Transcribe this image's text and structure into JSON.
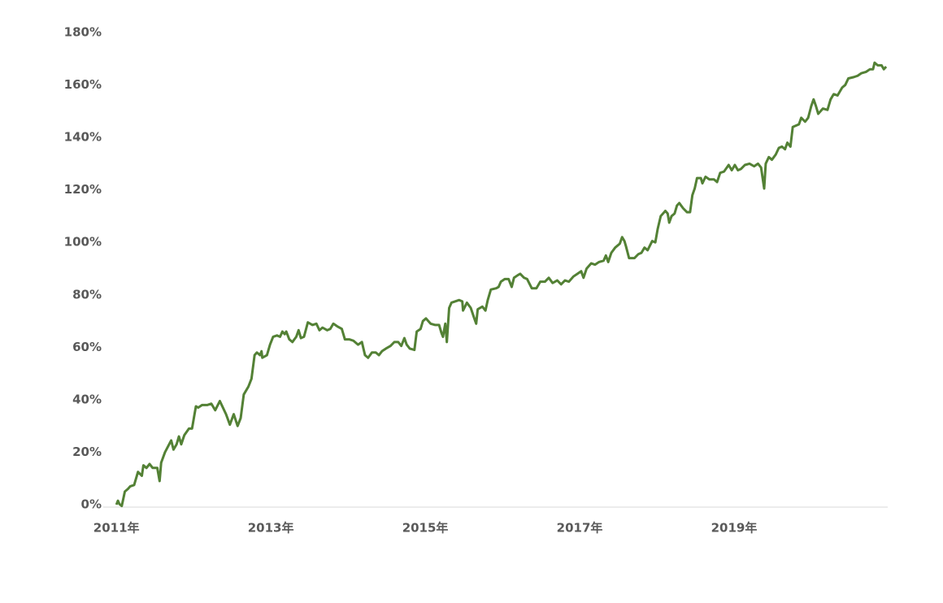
{
  "chart_data": {
    "type": "line",
    "x": [
      2011.0,
      2011.02,
      2011.04,
      2011.07,
      2011.11,
      2011.15,
      2011.18,
      2011.23,
      2011.28,
      2011.33,
      2011.35,
      2011.39,
      2011.43,
      2011.47,
      2011.53,
      2011.56,
      2011.58,
      2011.63,
      2011.71,
      2011.74,
      2011.78,
      2011.81,
      2011.84,
      2011.88,
      2011.94,
      2011.98,
      2012.03,
      2012.06,
      2012.11,
      2012.18,
      2012.23,
      2012.28,
      2012.34,
      2012.42,
      2012.47,
      2012.52,
      2012.57,
      2012.61,
      2012.65,
      2012.71,
      2012.75,
      2012.79,
      2012.82,
      2012.86,
      2012.88,
      2012.89,
      2012.95,
      2012.99,
      2013.03,
      2013.08,
      2013.12,
      2013.15,
      2013.18,
      2013.2,
      2013.24,
      2013.28,
      2013.33,
      2013.36,
      2013.39,
      2013.43,
      2013.48,
      2013.54,
      2013.59,
      2013.63,
      2013.67,
      2013.73,
      2013.77,
      2013.81,
      2013.86,
      2013.92,
      2013.96,
      2014.02,
      2014.07,
      2014.13,
      2014.18,
      2014.22,
      2014.26,
      2014.31,
      2014.36,
      2014.4,
      2014.44,
      2014.49,
      2014.55,
      2014.6,
      2014.65,
      2014.69,
      2014.73,
      2014.76,
      2014.8,
      2014.86,
      2014.89,
      2014.94,
      2014.97,
      2015.01,
      2015.07,
      2015.13,
      2015.18,
      2015.21,
      2015.23,
      2015.26,
      2015.28,
      2015.31,
      2015.34,
      2015.39,
      2015.44,
      2015.48,
      2015.49,
      2015.54,
      2015.59,
      2015.63,
      2015.66,
      2015.68,
      2015.74,
      2015.78,
      2015.81,
      2015.85,
      2015.92,
      2015.95,
      2015.98,
      2016.03,
      2016.08,
      2016.12,
      2016.15,
      2016.2,
      2016.23,
      2016.28,
      2016.32,
      2016.38,
      2016.44,
      2016.49,
      2016.55,
      2016.6,
      2016.65,
      2016.71,
      2016.76,
      2016.81,
      2016.86,
      2016.92,
      2016.97,
      2017.02,
      2017.05,
      2017.09,
      2017.15,
      2017.2,
      2017.25,
      2017.31,
      2017.34,
      2017.37,
      2017.41,
      2017.46,
      2017.52,
      2017.55,
      2017.58,
      2017.6,
      2017.64,
      2017.71,
      2017.76,
      2017.8,
      2017.84,
      2017.88,
      2017.94,
      2017.98,
      2018.01,
      2018.05,
      2018.11,
      2018.14,
      2018.16,
      2018.19,
      2018.23,
      2018.26,
      2018.29,
      2018.34,
      2018.39,
      2018.43,
      2018.46,
      2018.49,
      2018.52,
      2018.57,
      2018.59,
      2018.63,
      2018.68,
      2018.74,
      2018.78,
      2018.82,
      2018.87,
      2018.93,
      2018.97,
      2019.01,
      2019.05,
      2019.09,
      2019.14,
      2019.2,
      2019.26,
      2019.31,
      2019.35,
      2019.39,
      2019.41,
      2019.45,
      2019.49,
      2019.54,
      2019.58,
      2019.62,
      2019.66,
      2019.69,
      2019.73,
      2019.76,
      2019.8,
      2019.84,
      2019.87,
      2019.92,
      2019.96,
      2020.0,
      2020.03,
      2020.06,
      2020.09,
      2020.15,
      2020.21,
      2020.25,
      2020.29,
      2020.34,
      2020.4,
      2020.44,
      2020.48,
      2020.55,
      2020.6,
      2020.65,
      2020.71,
      2020.76,
      2020.8,
      2020.82,
      2020.86,
      2020.91,
      2020.94,
      2020.97
    ],
    "series": [
      {
        "color": "#538135",
        "values": [
          0,
          1.5,
          0.2,
          -0.5,
          5,
          6,
          7,
          7.5,
          12.5,
          11,
          15,
          14,
          15.5,
          14,
          14,
          9,
          16,
          20,
          24.5,
          21,
          23,
          26,
          23,
          26.5,
          29,
          29,
          37.5,
          37,
          38,
          38,
          38.5,
          36,
          39.5,
          34.5,
          30.5,
          34.5,
          30,
          33,
          42,
          45,
          48,
          57,
          58,
          57,
          58.5,
          56,
          57,
          61,
          64,
          64.5,
          64,
          66,
          65,
          66,
          63,
          62,
          64,
          66.5,
          63.5,
          64,
          69.5,
          68.5,
          69,
          66.5,
          67.5,
          66.5,
          67,
          69,
          68,
          67,
          63,
          63,
          62.5,
          61,
          62,
          57,
          56,
          58,
          58,
          57,
          58.5,
          59.5,
          60.5,
          62,
          62,
          60.5,
          63.5,
          61,
          59.5,
          59,
          66,
          67,
          70,
          71,
          69,
          68.5,
          68.5,
          65.5,
          64,
          69,
          62,
          75,
          77,
          77.5,
          78,
          77.5,
          74,
          77,
          75,
          71.5,
          69,
          74.5,
          75.5,
          74,
          78,
          82,
          82.5,
          83,
          85,
          86,
          86,
          83,
          86.5,
          87.5,
          88,
          86.5,
          86,
          82.5,
          82.5,
          85,
          85,
          86.5,
          84.5,
          85.5,
          84,
          85.5,
          85,
          87,
          88,
          89,
          86.5,
          90,
          92,
          91.5,
          92.5,
          93,
          95,
          92.5,
          96,
          98,
          99.5,
          102,
          100.5,
          98.5,
          94,
          94,
          95.5,
          96,
          98,
          97,
          100.5,
          100,
          105,
          110,
          112,
          111,
          107.5,
          110,
          111,
          114,
          115,
          113,
          111.5,
          111.5,
          118,
          120.5,
          124.5,
          124.5,
          122.5,
          125,
          124,
          124,
          123,
          126.5,
          127,
          129.5,
          127.5,
          129.5,
          127.5,
          128,
          129.5,
          130,
          129,
          130,
          128.5,
          120.5,
          130,
          132.5,
          131.5,
          133.5,
          136,
          136.5,
          135.5,
          138,
          136.5,
          144,
          144.5,
          145,
          147.5,
          146,
          147.5,
          152,
          154.5,
          152,
          149,
          151,
          150.5,
          154.5,
          156.5,
          156,
          159,
          160,
          162.5,
          163,
          163.5,
          164.5,
          165,
          166,
          166,
          168.5,
          167.5,
          167.5,
          166,
          167
        ]
      }
    ],
    "xlim": [
      2010.83,
      2020.99
    ],
    "xticks": [
      {
        "value": 2011,
        "label": "2011年"
      },
      {
        "value": 2013,
        "label": "2013年"
      },
      {
        "value": 2015,
        "label": "2015年"
      },
      {
        "value": 2017,
        "label": "2017年"
      },
      {
        "value": 2019,
        "label": "2019年"
      }
    ],
    "ylim": [
      0,
      180
    ],
    "yticks": [
      {
        "value": 0,
        "label": "0%"
      },
      {
        "value": 20,
        "label": "20%"
      },
      {
        "value": 40,
        "label": "40%"
      },
      {
        "value": 60,
        "label": "60%"
      },
      {
        "value": 80,
        "label": "80%"
      },
      {
        "value": 100,
        "label": "100%"
      },
      {
        "value": 120,
        "label": "120%"
      },
      {
        "value": 140,
        "label": "140%"
      },
      {
        "value": 160,
        "label": "160%"
      },
      {
        "value": 180,
        "label": "180%"
      }
    ],
    "grid": false
  }
}
